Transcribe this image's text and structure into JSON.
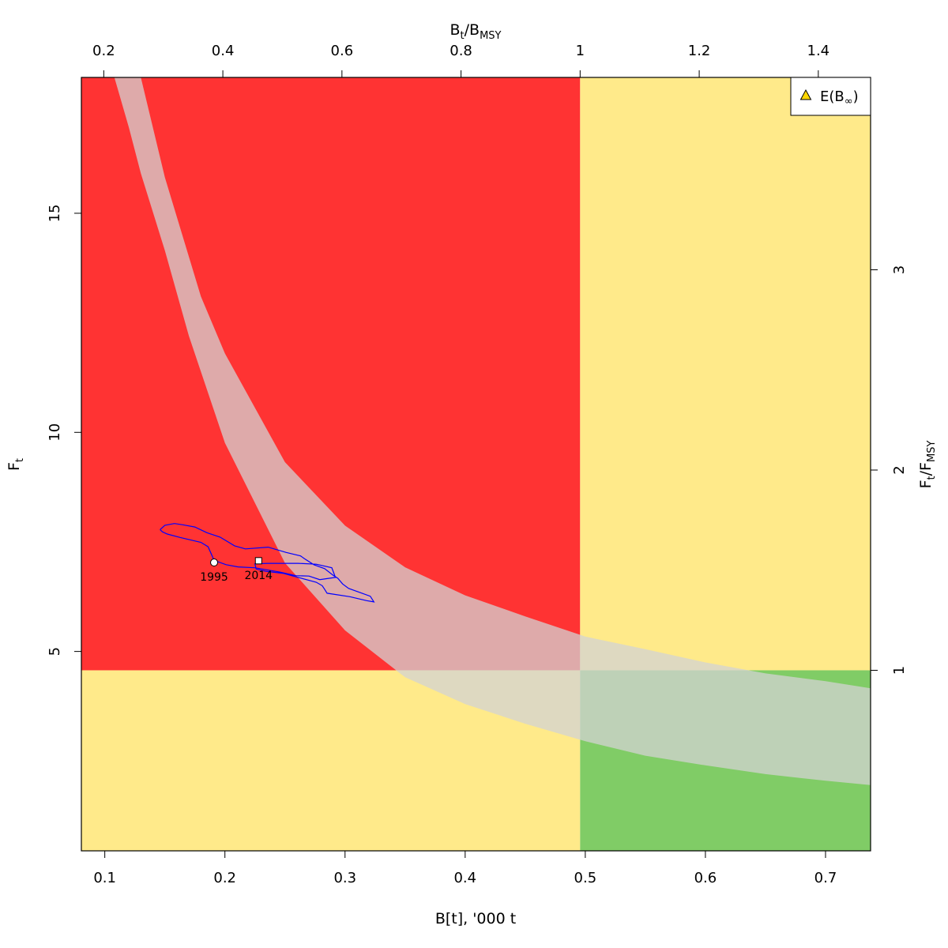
{
  "chart_data": {
    "type": "line",
    "bottom_axis": {
      "label": "B[t], '000 t",
      "ticks": [
        0.1,
        0.2,
        0.3,
        0.4,
        0.5,
        0.6,
        0.7
      ],
      "tick_labels": [
        "0.1",
        "0.2",
        "0.3",
        "0.4",
        "0.5",
        "0.6",
        "0.7"
      ],
      "range": [
        0.0805,
        0.7375
      ]
    },
    "top_axis": {
      "label_main": "B",
      "label_sub1": "t",
      "label_mid": "/B",
      "label_sub2": "MSY",
      "ticks": [
        0.2,
        0.4,
        0.6,
        0.8,
        1.0,
        1.2,
        1.4
      ],
      "tick_labels": [
        "0.2",
        "0.4",
        "0.6",
        "0.8",
        "1",
        "1.2",
        "1.4"
      ],
      "bmsy": 0.4957
    },
    "left_axis": {
      "label_main": "F",
      "label_sub": "t",
      "ticks": [
        5,
        10,
        15
      ],
      "tick_labels": [
        "5",
        "10",
        "15"
      ],
      "range": [
        0.45,
        18.1
      ]
    },
    "right_axis": {
      "label_main": "F",
      "label_sub1": "t",
      "label_mid": "/F",
      "label_sub2": "MSY",
      "ticks": [
        1,
        2,
        3
      ],
      "tick_labels": [
        "1",
        "2",
        "3"
      ],
      "fmsy": 4.57
    },
    "zones": [
      {
        "name": "overfished-overfishing",
        "x": [
          0.0805,
          0.4957
        ],
        "y": [
          4.57,
          18.1
        ],
        "color": "#ff3333"
      },
      {
        "name": "healthy-overfishing",
        "x": [
          0.4957,
          0.7375
        ],
        "y": [
          4.57,
          18.1
        ],
        "color": "#ffea8a"
      },
      {
        "name": "overfished-no-overfishing",
        "x": [
          0.0805,
          0.4957
        ],
        "y": [
          0.45,
          4.57
        ],
        "color": "#ffea8a"
      },
      {
        "name": "healthy-no-overfishing",
        "x": [
          0.4957,
          0.7375
        ],
        "y": [
          0.45,
          4.57
        ],
        "color": "#80cc66"
      }
    ],
    "equilibrium_band": {
      "color": "#d3d3d3",
      "opacity": 0.75,
      "upper": {
        "x": [
          0.13,
          0.15,
          0.18,
          0.2,
          0.25,
          0.3,
          0.35,
          0.4,
          0.45,
          0.5,
          0.55,
          0.6,
          0.65,
          0.7,
          0.7375
        ],
        "y": [
          18.1,
          15.82,
          13.1,
          11.8,
          9.32,
          7.87,
          6.92,
          6.28,
          5.8,
          5.34,
          5.05,
          4.75,
          4.5,
          4.32,
          4.16
        ]
      },
      "lower": {
        "x": [
          0.7375,
          0.7,
          0.65,
          0.6,
          0.55,
          0.5,
          0.45,
          0.4,
          0.35,
          0.3,
          0.25,
          0.2,
          0.17,
          0.15,
          0.13,
          0.12,
          0.108
        ],
        "y": [
          1.95,
          2.05,
          2.2,
          2.4,
          2.62,
          2.95,
          3.35,
          3.8,
          4.41,
          5.48,
          7.02,
          9.76,
          12.2,
          14.15,
          15.91,
          16.96,
          18.1
        ]
      }
    },
    "series": [
      {
        "x": [
          0.146,
          0.15,
          0.158,
          0.165,
          0.175,
          0.185,
          0.196,
          0.208,
          0.217,
          0.236,
          0.251,
          0.263,
          0.266,
          0.274,
          0.283,
          0.29,
          0.294,
          0.298,
          0.303,
          0.313,
          0.321,
          0.324,
          0.318,
          0.304,
          0.285,
          0.283,
          0.281,
          0.276,
          0.261,
          0.249,
          0.234,
          0.226,
          0.225,
          0.236,
          0.261,
          0.276,
          0.289,
          0.292,
          0.279,
          0.27,
          0.259,
          0.246,
          0.225,
          0.211,
          0.201,
          0.191,
          0.186,
          0.18,
          0.163,
          0.152,
          0.148,
          0.146
        ],
        "y": [
          7.78,
          7.88,
          7.92,
          7.89,
          7.84,
          7.71,
          7.61,
          7.41,
          7.34,
          7.38,
          7.26,
          7.18,
          7.12,
          6.98,
          6.89,
          6.74,
          6.67,
          6.54,
          6.44,
          6.34,
          6.26,
          6.13,
          6.16,
          6.25,
          6.33,
          6.42,
          6.5,
          6.58,
          6.69,
          6.78,
          6.83,
          6.88,
          7.0,
          7.01,
          7.01,
          6.99,
          6.91,
          6.69,
          6.64,
          6.72,
          6.73,
          6.81,
          6.91,
          6.93,
          6.98,
          7.08,
          7.39,
          7.49,
          7.6,
          7.68,
          7.73,
          7.78
        ],
        "color": "#0000ff"
      }
    ],
    "markers": [
      {
        "label": "1995",
        "x": 0.191,
        "y": 7.03,
        "shape": "circle"
      },
      {
        "label": "2014",
        "x": 0.228,
        "y": 7.07,
        "shape": "square"
      }
    ],
    "legend": {
      "position": "top-right",
      "label_main": "E(B",
      "label_sub": "∞",
      "label_end": ")",
      "symbol": "triangle",
      "symbol_color": "#ffd700"
    }
  }
}
